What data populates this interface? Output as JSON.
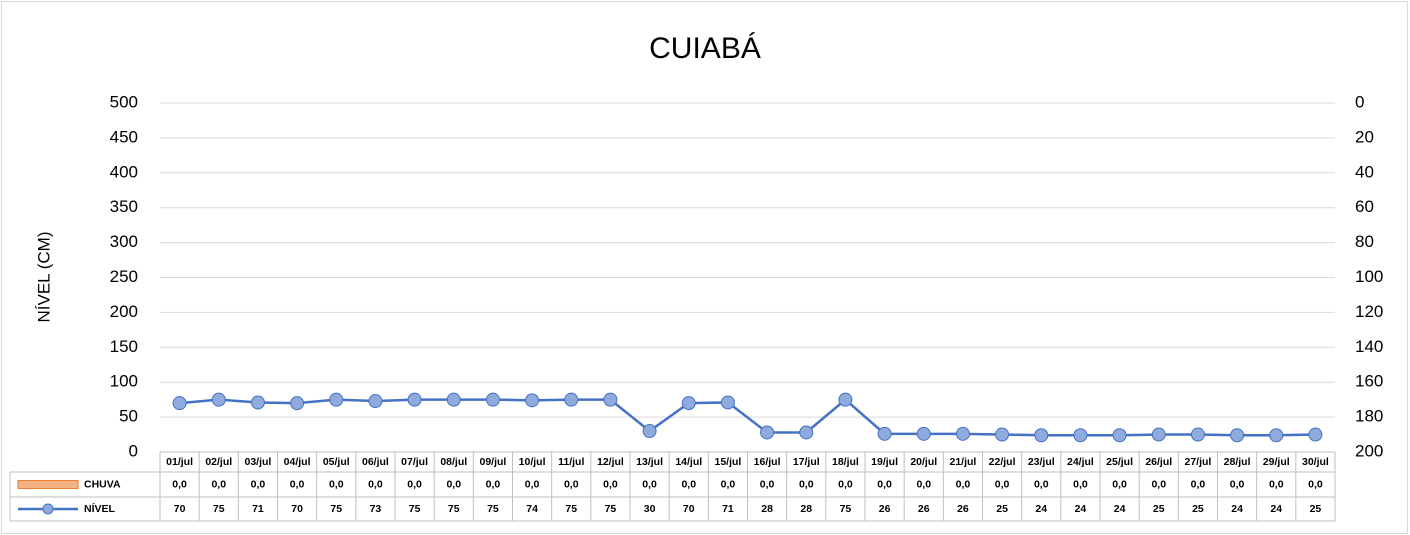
{
  "chart_data": {
    "type": "line",
    "title": "CUIABÁ",
    "y_label": "NÍVEL (CM)",
    "categories": [
      "01/jul",
      "02/jul",
      "03/jul",
      "04/jul",
      "05/jul",
      "06/jul",
      "07/jul",
      "08/jul",
      "09/jul",
      "10/jul",
      "11/jul",
      "12/jul",
      "13/jul",
      "14/jul",
      "15/jul",
      "16/jul",
      "17/jul",
      "18/jul",
      "19/jul",
      "20/jul",
      "21/jul",
      "22/jul",
      "23/jul",
      "24/jul",
      "25/jul",
      "26/jul",
      "27/jul",
      "28/jul",
      "29/jul",
      "30/jul"
    ],
    "series": [
      {
        "name": "CHUVA",
        "type": "bar",
        "axis": "y2",
        "color": "#f4b183",
        "edge_color": "#ed7d31",
        "values": [
          0,
          0,
          0,
          0,
          0,
          0,
          0,
          0,
          0,
          0,
          0,
          0,
          0,
          0,
          0,
          0,
          0,
          0,
          0,
          0,
          0,
          0,
          0,
          0,
          0,
          0,
          0,
          0,
          0,
          0
        ],
        "value_labels": [
          "0,0",
          "0,0",
          "0,0",
          "0,0",
          "0,0",
          "0,0",
          "0,0",
          "0,0",
          "0,0",
          "0,0",
          "0,0",
          "0,0",
          "0,0",
          "0,0",
          "0,0",
          "0,0",
          "0,0",
          "0,0",
          "0,0",
          "0,0",
          "0,0",
          "0,0",
          "0,0",
          "0,0",
          "0,0",
          "0,0",
          "0,0",
          "0,0",
          "0,0",
          "0,0"
        ]
      },
      {
        "name": "NÍVEL",
        "type": "line",
        "color": "#4472c4",
        "marker_color": "#8faadc",
        "values": [
          70,
          75,
          71,
          70,
          75,
          73,
          75,
          75,
          75,
          74,
          75,
          75,
          30,
          70,
          71,
          28,
          28,
          75,
          26,
          26,
          26,
          25,
          24,
          24,
          24,
          25,
          25,
          24,
          24,
          25
        ]
      }
    ],
    "ylim": [
      0,
      500
    ],
    "yticks": [
      0,
      50,
      100,
      150,
      200,
      250,
      300,
      350,
      400,
      450,
      500
    ],
    "y2lim": [
      200,
      0
    ],
    "y2ticks": [
      0,
      20,
      40,
      60,
      80,
      100,
      120,
      140,
      160,
      180,
      200
    ],
    "grid": true
  }
}
